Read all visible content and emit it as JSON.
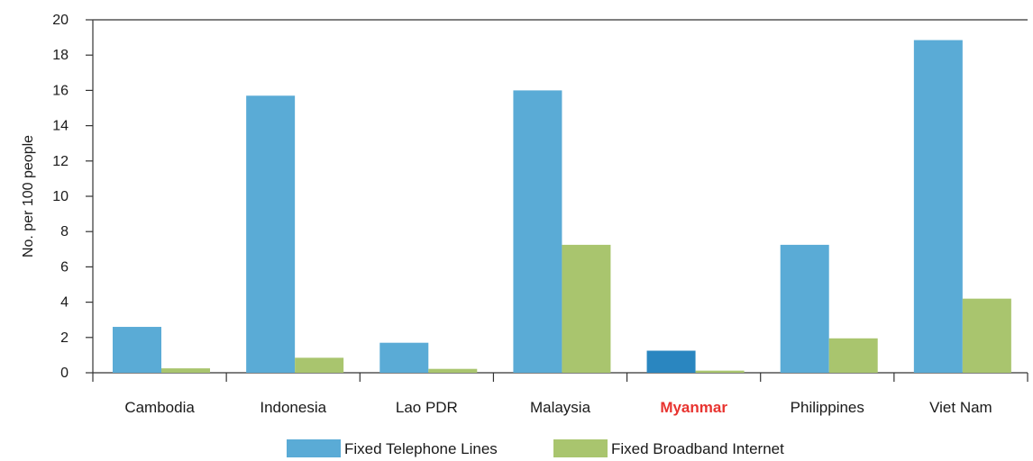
{
  "chart_data": {
    "type": "bar",
    "categories": [
      "Cambodia",
      "Indonesia",
      "Lao PDR",
      "Malaysia",
      "Myanmar",
      "Philippines",
      "Viet Nam"
    ],
    "highlight_category": "Myanmar",
    "series": [
      {
        "name": "Fixed Telephone Lines",
        "color": "#5aabd6",
        "highlight_color": "#2a86c0",
        "values": [
          2.6,
          15.7,
          1.7,
          16.0,
          1.25,
          7.25,
          18.85
        ]
      },
      {
        "name": "Fixed Broadband Internet",
        "color": "#a9c56e",
        "values": [
          0.25,
          0.85,
          0.22,
          7.25,
          0.12,
          1.95,
          4.2
        ]
      }
    ],
    "ylabel": "No. per 100 people",
    "ylim": [
      0,
      20
    ],
    "yticks": [
      0,
      2,
      4,
      6,
      8,
      10,
      12,
      14,
      16,
      18,
      20
    ],
    "legend_position": "bottom",
    "grid": false
  }
}
